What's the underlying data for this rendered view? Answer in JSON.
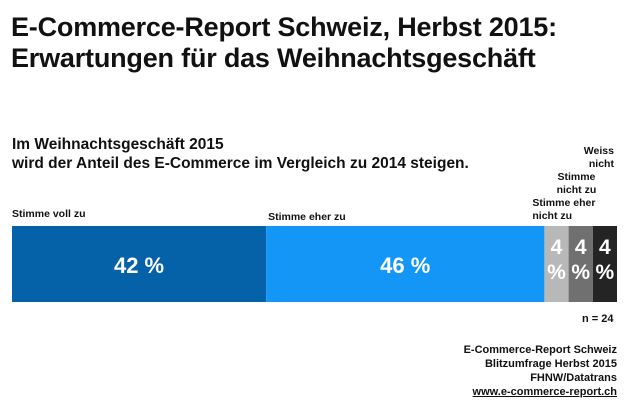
{
  "header": {
    "title_line1": "E-Commerce-Report Schweiz, Herbst 2015:",
    "title_line2": "Erwartungen für das Weihnachtsgeschäft"
  },
  "chart_data": {
    "type": "bar",
    "orientation": "horizontal-stacked-100",
    "title": "Im Weihnachtsgeschäft 2015 wird der Anteil des E-Commerce im Vergleich zu 2014 steigen.",
    "subtitle_line1": "Im Weihnachtsgeschäft 2015",
    "subtitle_line2": "wird der Anteil des E-Commerce im Vergleich zu 2014 steigen.",
    "xlabel": "",
    "ylabel": "",
    "categories": [
      "Stimme voll zu",
      "Stimme eher zu",
      "Stimme eher nicht zu",
      "Stimme nicht zu",
      "Weiss nicht"
    ],
    "values": [
      42,
      46,
      4,
      4,
      4
    ],
    "unit": "%",
    "value_labels": [
      "42 %",
      "46 %",
      "4 %",
      "4 %",
      "4 %"
    ],
    "colors": [
      "#0561a8",
      "#1496f6",
      "#b8b8b8",
      "#707070",
      "#242424"
    ],
    "label_lines": [
      [
        "Stimme voll zu"
      ],
      [
        "Stimme eher zu"
      ],
      [
        "Stimme eher",
        "nicht zu"
      ],
      [
        "Stimme",
        "nicht zu"
      ],
      [
        "Weiss",
        "nicht"
      ]
    ],
    "sample_size": "n = 24",
    "legend": "none"
  },
  "footer": {
    "sample": "n = 24",
    "source_line1": "E-Commerce-Report Schweiz",
    "source_line2": "Blitzumfrage Herbst 2015",
    "source_line3": "FHNW/Datatrans",
    "source_link": "www.e-commerce-report.ch"
  }
}
